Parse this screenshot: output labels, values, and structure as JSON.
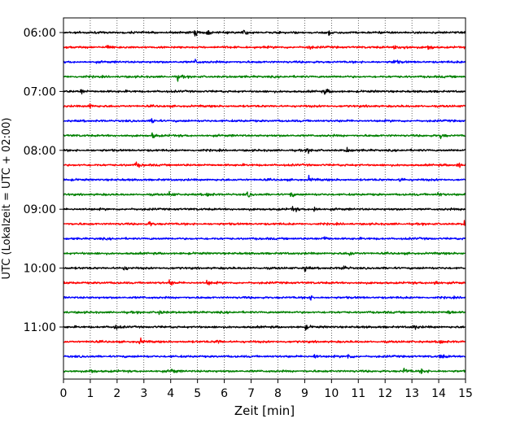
{
  "chart_data": {
    "type": "line",
    "xlabel": "Zeit  [min]",
    "ylabel": "UTC (Lokalzeit = UTC + 02:00)",
    "xlim": [
      0,
      15
    ],
    "x_ticks": [
      "0",
      "1",
      "2",
      "3",
      "4",
      "5",
      "6",
      "7",
      "8",
      "9",
      "10",
      "11",
      "12",
      "13",
      "14",
      "15"
    ],
    "y_ticks": [
      "06:00",
      "07:00",
      "08:00",
      "09:00",
      "10:00",
      "11:00"
    ],
    "grid": "vertical dotted",
    "line_colors": [
      "#000000",
      "#ff0000",
      "#0000ff",
      "#008000"
    ],
    "rows": [
      {
        "start": "06:00",
        "color": "#000000",
        "events": [
          4.9,
          5.35,
          6.7,
          9.9
        ]
      },
      {
        "start": "06:15",
        "color": "#ff0000",
        "events": [
          1.6,
          9.1,
          12.35,
          12.7,
          13.6
        ]
      },
      {
        "start": "06:30",
        "color": "#0000ff",
        "events": [
          4.9,
          12.3
        ]
      },
      {
        "start": "06:45",
        "color": "#008000",
        "events": [
          4.25
        ]
      },
      {
        "start": "07:00",
        "color": "#000000",
        "events": [
          0.65,
          9.75
        ]
      },
      {
        "start": "07:15",
        "color": "#ff0000",
        "events": [
          0.95
        ]
      },
      {
        "start": "07:30",
        "color": "#0000ff",
        "events": [
          3.3
        ]
      },
      {
        "start": "07:45",
        "color": "#008000",
        "events": [
          3.3,
          14.05
        ]
      },
      {
        "start": "08:00",
        "color": "#000000",
        "events": [
          9.1,
          10.55
        ]
      },
      {
        "start": "08:15",
        "color": "#ff0000",
        "events": [
          2.7,
          14.7
        ]
      },
      {
        "start": "08:30",
        "color": "#0000ff",
        "events": [
          9.15,
          12.55
        ]
      },
      {
        "start": "08:45",
        "color": "#008000",
        "events": [
          3.95,
          5.35,
          6.85,
          8.45,
          13.95
        ]
      },
      {
        "start": "09:00",
        "color": "#000000",
        "events": [
          8.55,
          9.35
        ]
      },
      {
        "start": "09:15",
        "color": "#ff0000",
        "events": [
          3.2,
          14.95
        ]
      },
      {
        "start": "09:30",
        "color": "#0000ff",
        "events": [
          9.7
        ]
      },
      {
        "start": "09:45",
        "color": "#008000",
        "events": [
          10.65
        ]
      },
      {
        "start": "10:00",
        "color": "#000000",
        "events": [
          2.2,
          9.0,
          10.4
        ]
      },
      {
        "start": "10:15",
        "color": "#ff0000",
        "events": [
          3.95,
          5.35,
          13.85
        ]
      },
      {
        "start": "10:30",
        "color": "#0000ff",
        "events": [
          9.15
        ]
      },
      {
        "start": "10:45",
        "color": "#008000",
        "events": [
          3.55,
          14.35
        ]
      },
      {
        "start": "11:00",
        "color": "#000000",
        "events": [
          1.9,
          9.0,
          13.05
        ]
      },
      {
        "start": "11:15",
        "color": "#ff0000",
        "events": [
          2.85,
          5.7,
          14.05
        ]
      },
      {
        "start": "11:30",
        "color": "#0000ff",
        "events": [
          9.35,
          10.6,
          14.05
        ]
      },
      {
        "start": "11:45",
        "color": "#008000",
        "events": [
          1.0,
          4.05,
          12.7,
          13.35
        ]
      }
    ]
  }
}
